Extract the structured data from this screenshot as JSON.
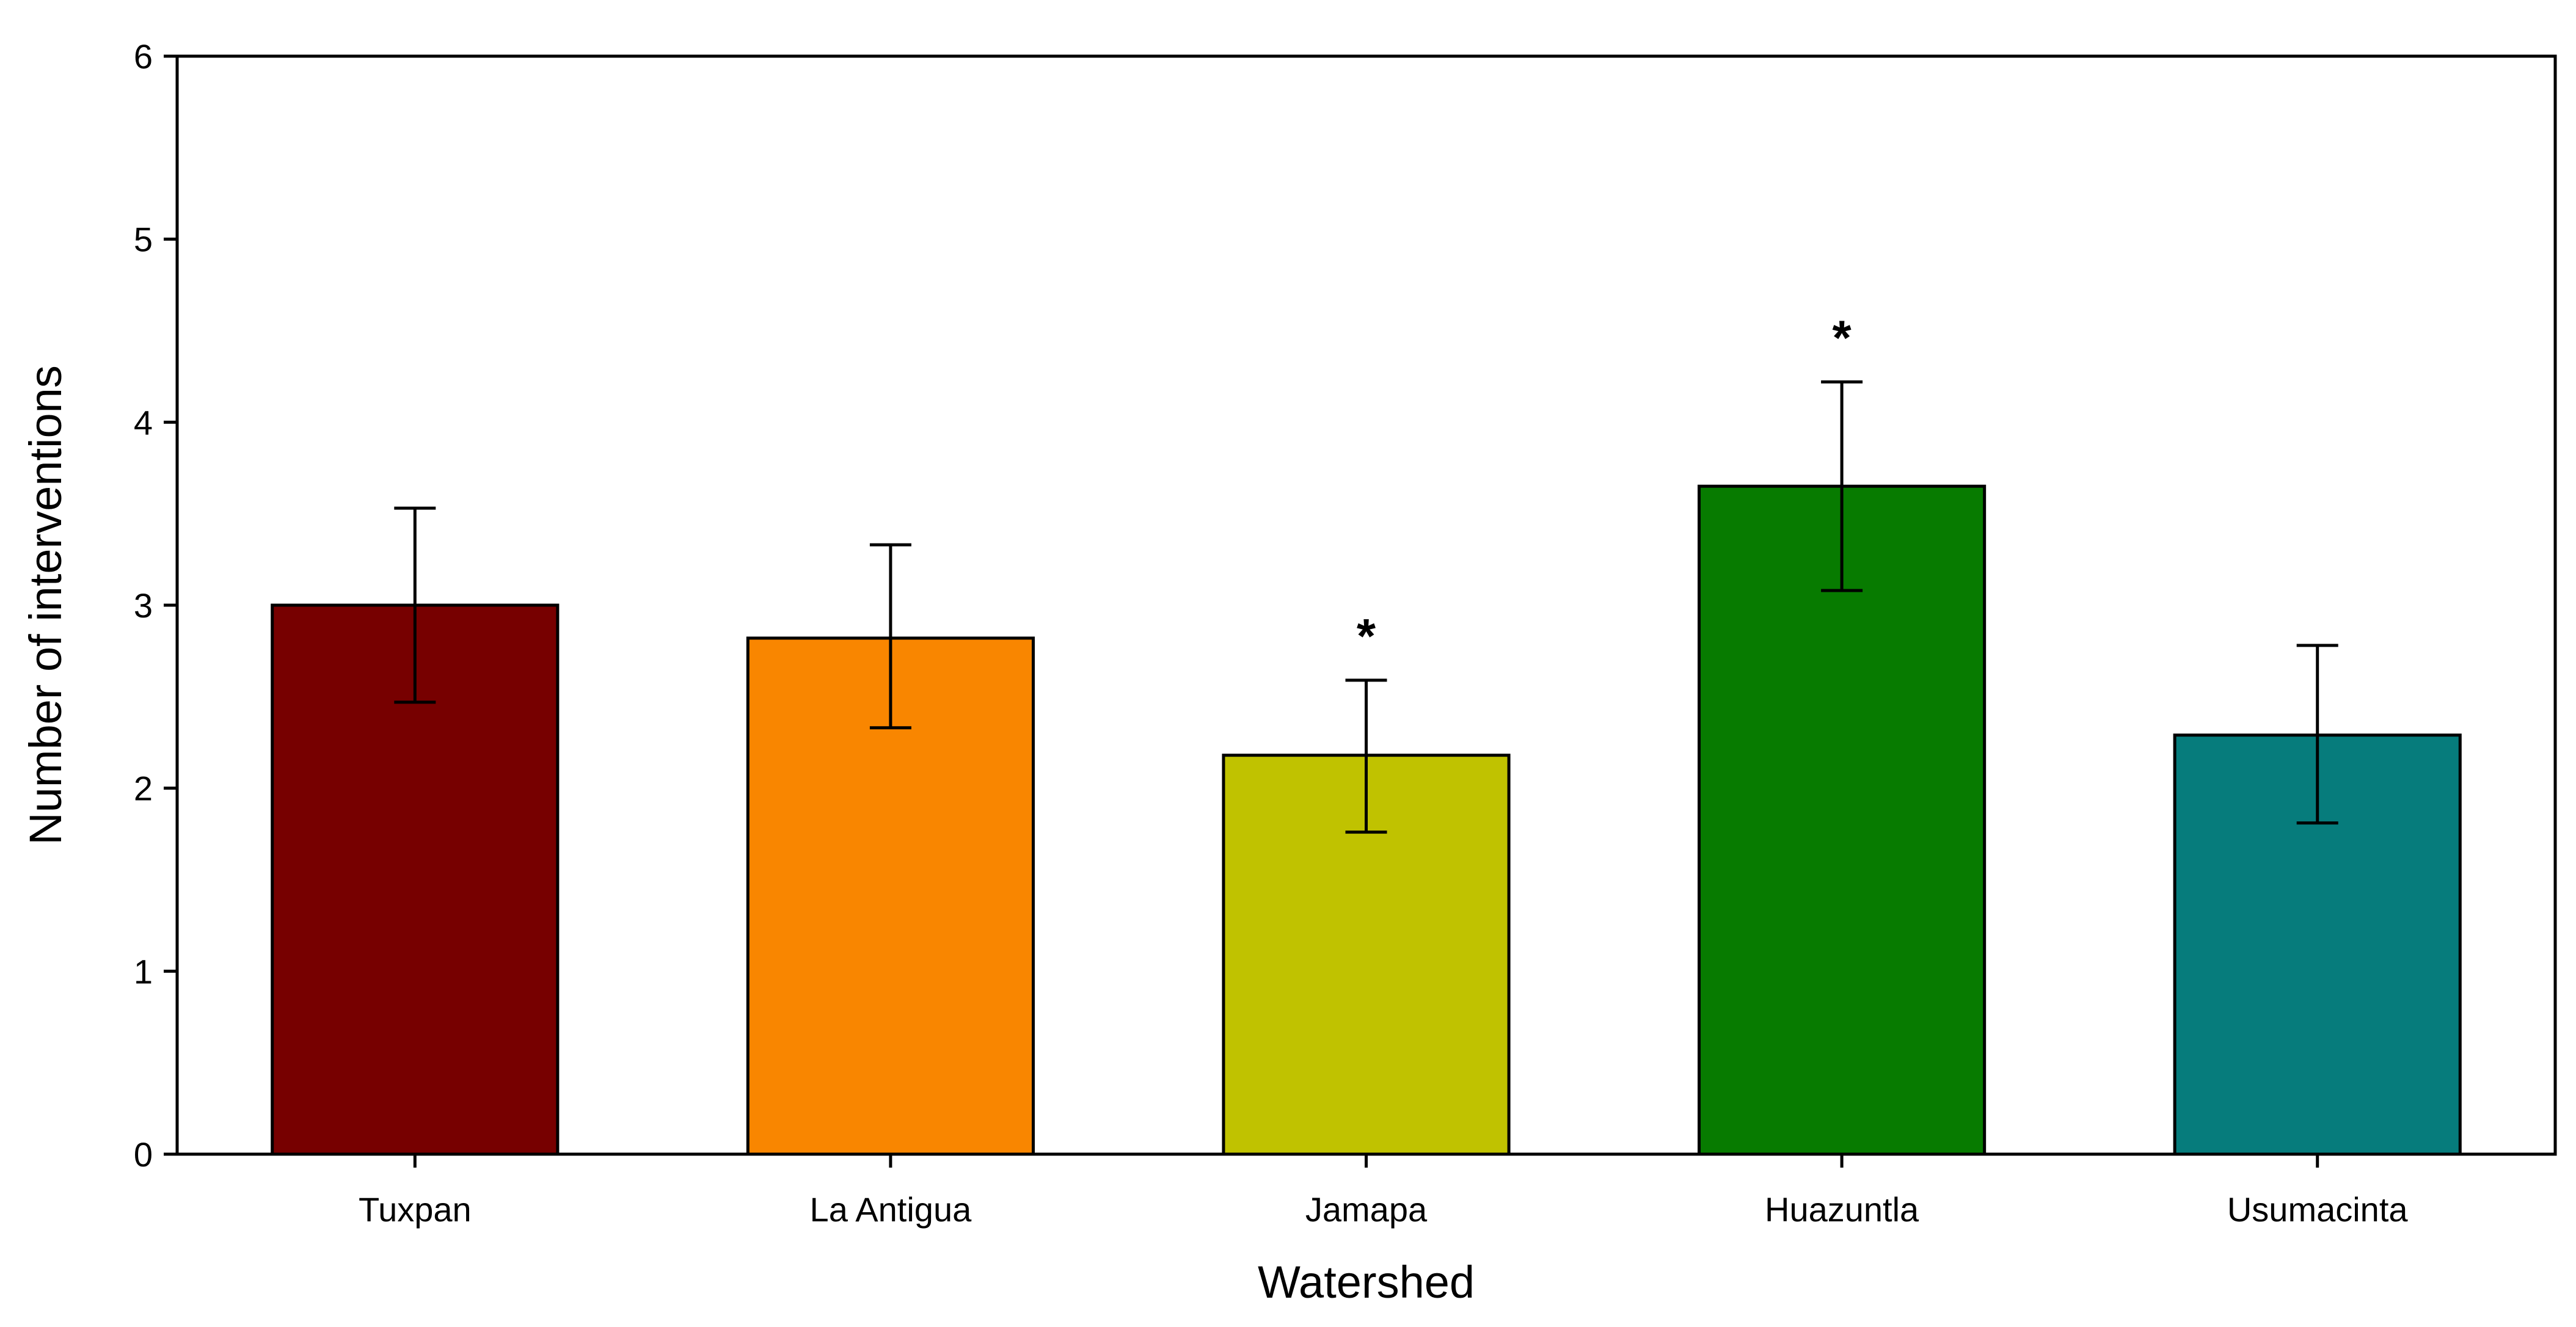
{
  "chart_data": {
    "type": "bar",
    "title": "",
    "xlabel": "Watershed",
    "ylabel": "Number of interventions",
    "ylim": [
      0,
      6
    ],
    "yticks": [
      0,
      1,
      2,
      3,
      4,
      5,
      6
    ],
    "grid": false,
    "categories": [
      "Tuxpan",
      "La Antigua",
      "Jamapa",
      "Huazuntla",
      "Usumacinta"
    ],
    "values": [
      3.0,
      2.82,
      2.18,
      3.65,
      2.29
    ],
    "error_low": [
      2.47,
      2.33,
      1.76,
      3.08,
      1.81
    ],
    "error_high": [
      3.53,
      3.33,
      2.59,
      4.22,
      2.78
    ],
    "colors": [
      "#770000",
      "#f98600",
      "#c0c200",
      "#077b00",
      "#067c7c"
    ],
    "annotations": [
      "",
      "",
      "*",
      "*",
      ""
    ]
  }
}
